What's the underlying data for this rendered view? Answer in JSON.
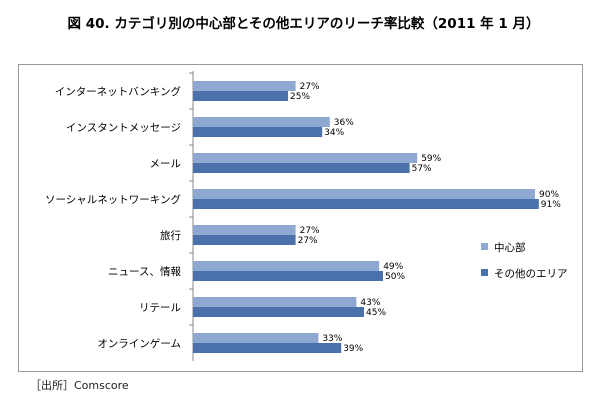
{
  "chart_data": {
    "type": "bar",
    "orientation": "horizontal",
    "title": "図 40. カテゴリ別の中心部とその他エリアのリーチ率比較（2011 年 1 月）",
    "categories": [
      "インターネットバンキング",
      "インスタントメッセージ",
      "メール",
      "ソーシャルネットワーキング",
      "旅行",
      "ニュース、情報",
      "リテール",
      "オンラインゲーム"
    ],
    "series": [
      {
        "name": "中心部",
        "values": [
          27,
          36,
          59,
          90,
          27,
          49,
          43,
          33
        ],
        "color": "#8EA8D2",
        "labels": [
          "27%",
          "36%",
          "59%",
          "90%",
          "27%",
          "49%",
          "43%",
          "33%"
        ]
      },
      {
        "name": "その他のエリア",
        "values": [
          25,
          34,
          57,
          91,
          27,
          50,
          45,
          39
        ],
        "color": "#4A71A9",
        "labels": [
          "25%",
          "34%",
          "57%",
          "91%",
          "27%",
          "50%",
          "45%",
          "39%"
        ]
      }
    ],
    "xlim": [
      0,
      100
    ],
    "xlabel": "",
    "ylabel": "",
    "grid": false,
    "legend": "right",
    "data_labels": true
  },
  "source": "［出所］Comscore"
}
